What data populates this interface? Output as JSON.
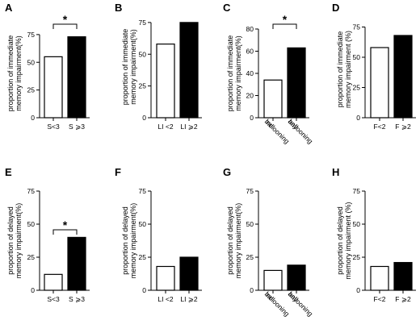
{
  "chart_data": [
    {
      "panel": "A",
      "type": "bar",
      "categories": [
        "S<3",
        "S ⩾3"
      ],
      "values": [
        55,
        73
      ],
      "ylabel": [
        "proportion of immediate",
        "memory impairment(%)"
      ],
      "yticks": [
        0,
        25,
        50,
        75
      ],
      "ylim": [
        0,
        80
      ],
      "fills": [
        "#ffffff",
        "#000000"
      ],
      "significance": "*"
    },
    {
      "panel": "B",
      "type": "bar",
      "categories": [
        "LI <2",
        "LI ⩾2"
      ],
      "values": [
        58,
        75
      ],
      "ylabel": [
        "proportion of immediate",
        "memory impairment(%)"
      ],
      "yticks": [
        0,
        25,
        50,
        75
      ],
      "ylim": [
        0,
        80
      ],
      "fills": [
        "#ffffff",
        "#000000"
      ],
      "significance": ""
    },
    {
      "panel": "C",
      "type": "bar",
      "categories": [
        [
          "no",
          "ballooning"
        ],
        [
          "any",
          "ballooning"
        ]
      ],
      "values": [
        34,
        63
      ],
      "ylabel": [
        "proportion of immediate",
        "memory impairment(%)"
      ],
      "yticks": [
        0,
        20,
        40,
        60,
        80
      ],
      "ylim": [
        0,
        80
      ],
      "fills": [
        "#ffffff",
        "#000000"
      ],
      "significance": "*"
    },
    {
      "panel": "D",
      "type": "bar",
      "categories": [
        "F<2",
        "F ⩾2"
      ],
      "values": [
        58,
        68
      ],
      "ylabel": [
        "proportion of immediate",
        "memory impairment (%)"
      ],
      "yticks": [
        0,
        25,
        50,
        75
      ],
      "ylim": [
        0,
        80
      ],
      "fills": [
        "#ffffff",
        "#000000"
      ],
      "significance": ""
    },
    {
      "panel": "E",
      "type": "bar",
      "categories": [
        "S<3",
        "S ⩾3"
      ],
      "values": [
        12,
        40
      ],
      "ylabel": [
        "proportion of delayed",
        "memory impairment(%)"
      ],
      "yticks": [
        0,
        25,
        50,
        75
      ],
      "ylim": [
        0,
        75
      ],
      "fills": [
        "#ffffff",
        "#000000"
      ],
      "significance": "*"
    },
    {
      "panel": "F",
      "type": "bar",
      "categories": [
        "LI <2",
        "LI ⩾2"
      ],
      "values": [
        18,
        25
      ],
      "ylabel": [
        "proportion of delayed",
        "memory impairment(%)"
      ],
      "yticks": [
        0,
        25,
        50,
        75
      ],
      "ylim": [
        0,
        75
      ],
      "fills": [
        "#ffffff",
        "#000000"
      ],
      "significance": ""
    },
    {
      "panel": "G",
      "type": "bar",
      "categories": [
        [
          "no",
          "ballooning"
        ],
        [
          "any",
          "ballooning"
        ]
      ],
      "values": [
        15,
        19
      ],
      "ylabel": [
        "proportion of delayed",
        "memory impairment(%)"
      ],
      "yticks": [
        0,
        25,
        50,
        75
      ],
      "ylim": [
        0,
        75
      ],
      "fills": [
        "#ffffff",
        "#000000"
      ],
      "significance": ""
    },
    {
      "panel": "H",
      "type": "bar",
      "categories": [
        "F<2",
        "F ⩾2"
      ],
      "values": [
        18,
        21
      ],
      "ylabel": [
        "proportion of delayed",
        "memory impairment (%)"
      ],
      "yticks": [
        0,
        25,
        50,
        75
      ],
      "ylim": [
        0,
        75
      ],
      "fills": [
        "#ffffff",
        "#000000"
      ],
      "significance": ""
    }
  ]
}
